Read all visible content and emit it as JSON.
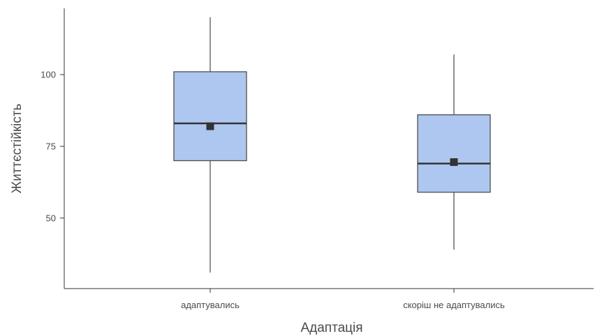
{
  "chart_data": {
    "type": "box",
    "xlabel": "Адаптація",
    "ylabel": "Життєстійкість",
    "categories": [
      "адаптувались",
      "скоріш не адаптувались"
    ],
    "yticks": [
      50,
      75,
      100
    ],
    "ylim": [
      25.4,
      123.1
    ],
    "grid": false,
    "series": [
      {
        "category": "адаптувались",
        "min": 31,
        "q1": 70,
        "median": 83,
        "q3": 101,
        "max": 120,
        "mean": 82
      },
      {
        "category": "скоріш не адаптувались",
        "min": 39,
        "q1": 59,
        "median": 69,
        "q3": 86,
        "max": 107,
        "mean": 69.5
      }
    ],
    "colors": {
      "box_fill": "#aec7f0",
      "box_stroke": "#4d4d4d",
      "mean_marker": "#333333",
      "axis": "#333333",
      "text": "#4a4a4a"
    }
  }
}
